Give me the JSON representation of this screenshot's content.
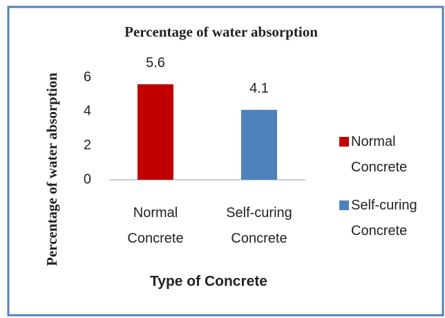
{
  "chart_data": {
    "type": "bar",
    "title": "Percentage of water absorption",
    "x_label": "Type of Concrete",
    "y_label": "Percentage of water absorption",
    "categories": [
      "Normal Concrete",
      "Self-curing Concrete"
    ],
    "values": [
      5.6,
      4.1
    ],
    "colors": [
      "#c00000",
      "#4f81bd"
    ],
    "ylim": [
      0,
      6
    ],
    "yticks": [
      0,
      2,
      4,
      6
    ],
    "grid": false,
    "legend": "right"
  }
}
